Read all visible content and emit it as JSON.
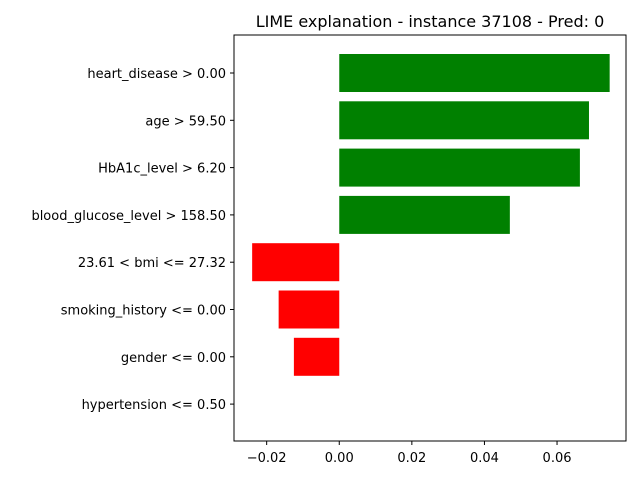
{
  "chart_data": {
    "type": "bar",
    "orientation": "horizontal",
    "title": "LIME explanation - instance 37108 - Pred: 0",
    "xlabel": "",
    "ylabel": "",
    "categories": [
      "heart_disease > 0.00",
      "age > 59.50",
      "HbA1c_level > 6.20",
      "blood_glucose_level > 158.50",
      "23.61 < bmi <= 27.32",
      "smoking_history <= 0.00",
      "gender <= 0.00",
      "hypertension <= 0.50"
    ],
    "values": [
      0.0745,
      0.0688,
      0.0663,
      0.047,
      -0.024,
      -0.0167,
      -0.0125,
      0.0
    ],
    "colors": [
      "#008000",
      "#008000",
      "#008000",
      "#008000",
      "#ff0000",
      "#ff0000",
      "#ff0000",
      "#ff0000"
    ],
    "positive_color": "#008000",
    "negative_color": "#ff0000",
    "xlim": [
      -0.029,
      0.079
    ],
    "xticks": [
      -0.02,
      0.0,
      0.02,
      0.04,
      0.06
    ],
    "xtick_labels": [
      "−0.02",
      "0.00",
      "0.02",
      "0.04",
      "0.06"
    ],
    "grid": false,
    "legend": "none"
  }
}
